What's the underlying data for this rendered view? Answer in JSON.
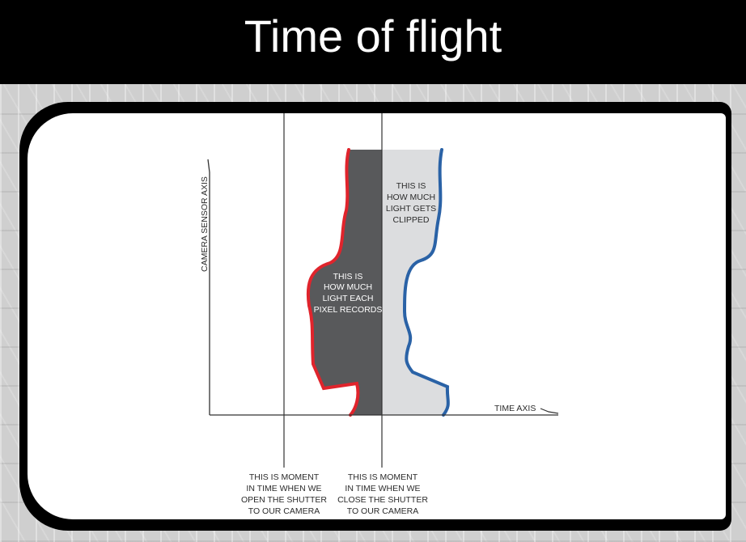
{
  "title": "Time of flight",
  "diagram": {
    "y_axis_label": "CAMERA SENSOR AXIS",
    "x_axis_label": "TIME AXIS",
    "recorded_label": [
      "THIS IS",
      "HOW MUCH",
      "LIGHT EACH",
      "PIXEL RECORDS"
    ],
    "clipped_label": [
      "THIS IS",
      "HOW MUCH",
      "LIGHT GETS",
      "CLIPPED"
    ],
    "open_shutter_label": [
      "THIS IS MOMENT",
      "IN TIME WHEN WE",
      "OPEN THE SHUTTER",
      "TO OUR CAMERA"
    ],
    "close_shutter_label": [
      "THIS IS MOMENT",
      "IN TIME WHEN WE",
      "CLOSE THE SHUTTER",
      "TO OUR CAMERA"
    ],
    "colors": {
      "recorded_fill": "#58595b",
      "clipped_fill": "#dcdddf",
      "red_edge": "#e0242c",
      "blue_edge": "#2a62a6"
    }
  }
}
